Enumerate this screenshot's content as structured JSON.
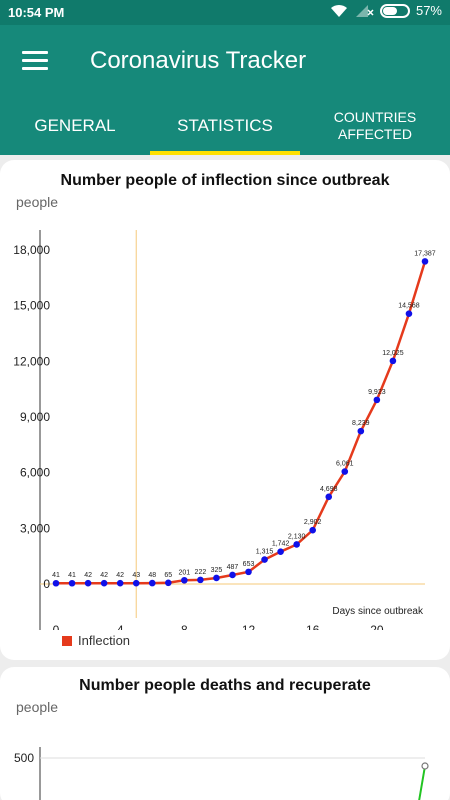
{
  "status_bar": {
    "time": "10:54 PM",
    "battery": "57%",
    "battery_level": 0.57
  },
  "app_bar": {
    "title": "Coronavirus Tracker",
    "menu_icon": "hamburger-menu-icon"
  },
  "tabs": [
    {
      "label": "GENERAL",
      "selected": false
    },
    {
      "label": "STATISTICS",
      "selected": true
    },
    {
      "label": "COUNTRIES AFFECTED",
      "selected": false
    }
  ],
  "colors": {
    "accent": "#16897a",
    "indicator": "#ffe000",
    "line": "#e53a1c",
    "point": "#1010e8",
    "highlight": "#f5c97a"
  },
  "chart_data": [
    {
      "type": "line",
      "title": "Number people of inflection since outbreak",
      "ylabel": "people",
      "xlabel": "Days since outbreak",
      "legend": "bottom-left",
      "grid": false,
      "ylim": [
        0,
        18000
      ],
      "xlim": [
        0,
        23
      ],
      "y_ticks": [
        "0",
        "3,000",
        "6,000",
        "9,000",
        "12,000",
        "15,000",
        "18,000"
      ],
      "x_ticks": [
        "0",
        "4",
        "8",
        "12",
        "16",
        "20"
      ],
      "highlight_x": 5,
      "series": [
        {
          "name": "Inflection",
          "x": [
            0,
            1,
            2,
            3,
            4,
            5,
            6,
            7,
            8,
            9,
            10,
            11,
            12,
            13,
            14,
            15,
            16,
            17,
            18,
            19,
            20,
            21,
            22,
            23
          ],
          "values": [
            41,
            41,
            42,
            42,
            42,
            43,
            48,
            65,
            201,
            222,
            325,
            487,
            653,
            1315,
            1742,
            2130,
            2902,
            4698,
            6061,
            8239,
            9923,
            12025,
            14568,
            17387
          ],
          "labels": [
            "41",
            "41",
            "42",
            "42",
            "42",
            "43",
            "48",
            "65",
            "201",
            "222",
            "325",
            "487",
            "653",
            "1,315",
            "1,742",
            "2,130",
            "2,902",
            "4,698",
            "6,061",
            "8,239",
            "9,923",
            "12,025",
            "14,568",
            "17,387"
          ]
        }
      ]
    },
    {
      "type": "line",
      "title": "Number people deaths and recuperate",
      "ylabel": "people",
      "y_ticks": [
        "500"
      ],
      "ylim": [
        0,
        500
      ]
    }
  ]
}
